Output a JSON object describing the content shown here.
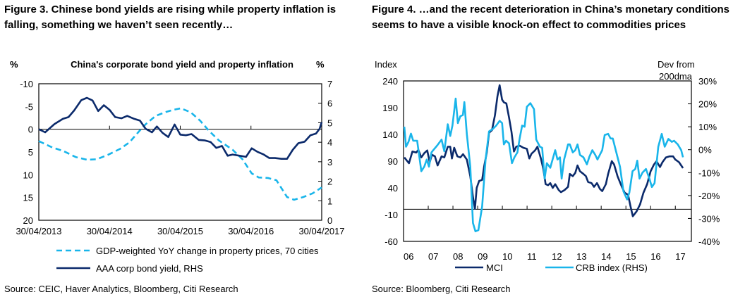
{
  "colors": {
    "dark": "#0b2a6b",
    "light": "#19b5ea",
    "axis": "#000000"
  },
  "figure3": {
    "title_line1": "Figure 3. Chinese bond yields are rising while property inflation is",
    "title_line2": "falling, something we haven’t seen recently…",
    "source": "Source: CEIC, Haver Analytics, Bloomberg, Citi Research"
  },
  "figure4": {
    "title_line1": "Figure 4. …and the recent deterioration in China’s monetary conditions",
    "title_line2": "seems to have a visible knock-on effect to commodities prices",
    "source": "Source: Bloomberg, Citi Research"
  },
  "chart_data": [
    {
      "type": "line",
      "title": "China's corporate bond yield and property inflation",
      "ylabel_left": "%",
      "ylabel_right": "%",
      "ylim_left": [
        20,
        -10
      ],
      "yticks_left": [
        "-10",
        "-5",
        "0",
        "5",
        "10",
        "15",
        "20"
      ],
      "ylim_right": [
        0,
        7
      ],
      "yticks_right": [
        "0",
        "1",
        "2",
        "3",
        "4",
        "5",
        "6",
        "7"
      ],
      "xlim": [
        2013.33,
        2017.33
      ],
      "xticks": [
        "30/04/2013",
        "30/04/2014",
        "30/04/2015",
        "30/04/2016",
        "30/04/2017"
      ],
      "grid": false,
      "legend": "bottom",
      "series": [
        {
          "name": "GDP-weighted YoY change in property prices, 70 cities",
          "axis": "left",
          "style": "dashed",
          "color": "#19b5ea",
          "x": [
            2013.33,
            2013.52,
            2013.68,
            2013.85,
            2014.01,
            2014.15,
            2014.31,
            2014.48,
            2014.61,
            2014.75,
            2014.84,
            2014.98,
            2015.11,
            2015.24,
            2015.34,
            2015.48,
            2015.61,
            2015.74,
            2015.88,
            2016.07,
            2016.21,
            2016.34,
            2016.44,
            2016.57,
            2016.69,
            2016.84,
            2016.94,
            2017.07,
            2017.2,
            2017.33
          ],
          "y": [
            2.6,
            4.0,
            4.8,
            6.1,
            6.7,
            6.6,
            5.6,
            4.3,
            2.9,
            0.4,
            -1.1,
            -2.9,
            -3.7,
            -4.3,
            -4.6,
            -3.7,
            -1.9,
            0.4,
            2.5,
            4.5,
            6.6,
            9.7,
            10.6,
            10.7,
            11.2,
            14.9,
            15.5,
            14.9,
            14.1,
            12.8
          ]
        },
        {
          "name": "AAA corp bond yield, RHS",
          "axis": "right",
          "style": "solid",
          "color": "#0b2a6b",
          "x": [
            2013.33,
            2013.42,
            2013.55,
            2013.67,
            2013.75,
            2013.83,
            2013.93,
            2014.01,
            2014.09,
            2014.17,
            2014.25,
            2014.33,
            2014.41,
            2014.5,
            2014.58,
            2014.68,
            2014.76,
            2014.84,
            2014.93,
            2015.0,
            2015.08,
            2015.16,
            2015.25,
            2015.33,
            2015.41,
            2015.49,
            2015.59,
            2015.68,
            2015.76,
            2015.84,
            2015.92,
            2016.0,
            2016.07,
            2016.17,
            2016.26,
            2016.34,
            2016.42,
            2016.51,
            2016.59,
            2016.67,
            2016.76,
            2016.84,
            2016.92,
            2017.0,
            2017.09,
            2017.17,
            2017.25,
            2017.3,
            2017.33
          ],
          "y": [
            4.67,
            4.51,
            4.93,
            5.2,
            5.29,
            5.63,
            6.16,
            6.28,
            6.14,
            5.6,
            5.9,
            5.66,
            5.29,
            5.23,
            5.35,
            5.2,
            5.11,
            4.69,
            4.51,
            4.81,
            4.48,
            4.27,
            4.91,
            4.39,
            4.36,
            4.42,
            4.12,
            4.09,
            4.01,
            3.71,
            3.81,
            3.31,
            3.37,
            3.31,
            3.25,
            3.69,
            3.51,
            3.37,
            3.19,
            3.19,
            3.15,
            3.15,
            3.61,
            3.95,
            4.03,
            4.36,
            4.45,
            4.69,
            5.03
          ]
        }
      ]
    },
    {
      "type": "line",
      "title": "",
      "ylabel_left": "Index",
      "ylabel_right_line1": "Dev from",
      "ylabel_right_line2": "200dma",
      "ylim_left": [
        -60,
        240
      ],
      "yticks_left": [
        "240",
        "190",
        "140",
        "90",
        "40",
        "-10",
        "-60"
      ],
      "ylim_right": [
        -40,
        30
      ],
      "yticks_right": [
        "30%",
        "20%",
        "10%",
        "0%",
        "-10%",
        "-20%",
        "-30%",
        "-40%"
      ],
      "xlim": [
        2006,
        2017.65
      ],
      "xticks": [
        "06",
        "07",
        "08",
        "09",
        "10",
        "11",
        "12",
        "13",
        "14",
        "15",
        "16",
        "17"
      ],
      "grid": false,
      "legend": "bottom",
      "series": [
        {
          "name": "MCI",
          "axis": "left",
          "style": "solid",
          "color": "#0b2a6b",
          "x": [
            2006.03,
            2006.22,
            2006.36,
            2006.51,
            2006.6,
            2006.72,
            2006.84,
            2006.96,
            2007.06,
            2007.15,
            2007.27,
            2007.38,
            2007.54,
            2007.65,
            2007.79,
            2007.89,
            2007.96,
            2008.05,
            2008.18,
            2008.3,
            2008.41,
            2008.56,
            2008.7,
            2008.81,
            2008.89,
            2008.96,
            2009.06,
            2009.18,
            2009.27,
            2009.37,
            2009.46,
            2009.58,
            2009.7,
            2009.8,
            2009.89,
            2009.99,
            2010.06,
            2010.16,
            2010.27,
            2010.37,
            2010.47,
            2010.56,
            2010.7,
            2010.85,
            2010.99,
            2011.09,
            2011.18,
            2011.32,
            2011.42,
            2011.56,
            2011.66,
            2011.75,
            2011.85,
            2011.94,
            2012.04,
            2012.14,
            2012.28,
            2012.37,
            2012.52,
            2012.66,
            2012.73,
            2012.85,
            2012.95,
            2013.04,
            2013.14,
            2013.28,
            2013.38,
            2013.47,
            2013.61,
            2013.71,
            2013.83,
            2013.95,
            2014.04,
            2014.19,
            2014.28,
            2014.43,
            2014.52,
            2014.66,
            2014.81,
            2014.95,
            2015.09,
            2015.19,
            2015.28,
            2015.43,
            2015.57,
            2015.71,
            2015.86,
            2016.0,
            2016.14,
            2016.24,
            2016.38,
            2016.48,
            2016.62,
            2016.76,
            2016.91,
            2017.0,
            2017.15,
            2017.31
          ],
          "y": [
            97,
            86,
            108,
            106,
            111,
            97,
            105,
            110,
            88,
            102,
            99,
            82,
            99,
            97,
            117,
            117,
            95,
            115,
            99,
            97,
            103,
            93,
            62,
            23,
            1,
            40,
            53,
            55,
            82,
            106,
            143,
            148,
            176,
            211,
            232,
            205,
            200,
            198,
            172,
            145,
            108,
            117,
            119,
            115,
            113,
            95,
            104,
            110,
            117,
            95,
            75,
            47,
            45,
            49,
            40,
            47,
            36,
            32,
            36,
            42,
            66,
            62,
            68,
            82,
            71,
            66,
            62,
            51,
            49,
            42,
            49,
            38,
            34,
            47,
            66,
            90,
            84,
            62,
            45,
            31,
            27,
            5,
            -13,
            -4,
            9,
            31,
            47,
            71,
            84,
            90,
            79,
            88,
            97,
            99,
            99,
            93,
            88,
            77
          ]
        },
        {
          "name": "CRB index (RHS)",
          "axis": "right",
          "style": "solid",
          "color": "#19b5ea",
          "x": [
            2006.03,
            2006.1,
            2006.2,
            2006.3,
            2006.39,
            2006.55,
            2006.72,
            2006.84,
            2006.94,
            2007.03,
            2007.13,
            2007.22,
            2007.36,
            2007.54,
            2007.65,
            2007.79,
            2007.89,
            2007.98,
            2008.11,
            2008.2,
            2008.3,
            2008.4,
            2008.46,
            2008.56,
            2008.7,
            2008.81,
            2008.91,
            2009.03,
            2009.18,
            2009.32,
            2009.46,
            2009.61,
            2009.75,
            2009.89,
            2009.99,
            2010.06,
            2010.15,
            2010.27,
            2010.39,
            2010.49,
            2010.61,
            2010.7,
            2010.8,
            2010.9,
            2010.99,
            2011.13,
            2011.28,
            2011.37,
            2011.52,
            2011.61,
            2011.71,
            2011.8,
            2011.94,
            2012.14,
            2012.23,
            2012.33,
            2012.4,
            2012.5,
            2012.66,
            2012.73,
            2012.85,
            2012.95,
            2013.04,
            2013.14,
            2013.28,
            2013.42,
            2013.52,
            2013.64,
            2013.76,
            2013.85,
            2014.04,
            2014.14,
            2014.28,
            2014.38,
            2014.47,
            2014.6,
            2014.76,
            2014.9,
            2015.05,
            2015.14,
            2015.27,
            2015.38,
            2015.46,
            2015.55,
            2015.67,
            2015.81,
            2015.95,
            2016.05,
            2016.16,
            2016.31,
            2016.45,
            2016.57,
            2016.72,
            2016.86,
            2016.95,
            2017.1,
            2017.24,
            2017.31
          ],
          "y": [
            10,
            1.3,
            3.4,
            7,
            3.9,
            3.9,
            -9.4,
            -7.4,
            -4.3,
            -7.4,
            -1.2,
            0,
            1.8,
            4.4,
            -0.7,
            11.1,
            6,
            10.5,
            22.3,
            11.6,
            14.6,
            15.1,
            20.8,
            6.9,
            -7.4,
            -32,
            -35.6,
            -35.1,
            -24.8,
            -4.3,
            8,
            9,
            10.5,
            12.6,
            11.6,
            2.3,
            3.9,
            2.8,
            -5.9,
            -3.3,
            -1.2,
            4.9,
            10.5,
            10,
            18.7,
            20.3,
            17.7,
            4.4,
            1.3,
            0.8,
            -12.6,
            -5.9,
            -7.9,
            -0.2,
            -4.3,
            -3.3,
            -12.6,
            -4.3,
            2.3,
            2.3,
            -1.2,
            -0.2,
            2.3,
            -2.3,
            -3.3,
            -6.4,
            -3.1,
            -0.2,
            -2.3,
            -4.3,
            -0.2,
            6.4,
            6.9,
            4.9,
            4.9,
            -0.7,
            -7.4,
            -18.2,
            -21.7,
            -18.7,
            -9.4,
            -8.4,
            -4.8,
            -12.6,
            -10,
            -8.4,
            -12.6,
            -16.3,
            -14.6,
            1.3,
            6.9,
            1.3,
            4.7,
            3.4,
            3.9,
            2.3,
            -0.2,
            -3.3
          ]
        }
      ]
    }
  ]
}
